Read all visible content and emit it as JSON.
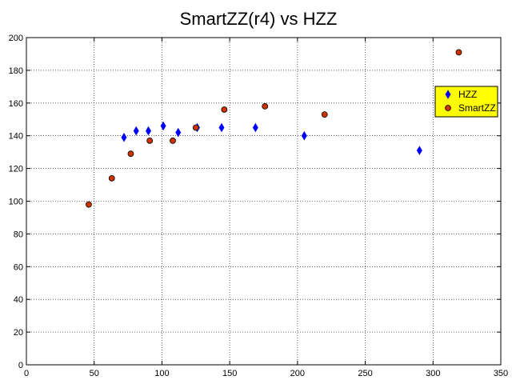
{
  "chart_data": {
    "type": "scatter",
    "title": "SmartZZ(r4) vs HZZ",
    "xlabel": "",
    "ylabel": "",
    "xlim": [
      0,
      350
    ],
    "ylim": [
      0,
      200
    ],
    "xticks": [
      "0",
      "50",
      "100",
      "150",
      "200",
      "250",
      "300",
      "350"
    ],
    "yticks": [
      "0",
      "20",
      "40",
      "60",
      "80",
      "100",
      "120",
      "140",
      "160",
      "180",
      "200"
    ],
    "grid": true,
    "legend_position": "top-right",
    "series": [
      {
        "name": "HZZ",
        "marker": "diamond",
        "color": "#0000ff",
        "points": [
          {
            "x": 72,
            "y": 139
          },
          {
            "x": 81,
            "y": 143
          },
          {
            "x": 90,
            "y": 143
          },
          {
            "x": 101,
            "y": 146
          },
          {
            "x": 112,
            "y": 142
          },
          {
            "x": 126,
            "y": 145
          },
          {
            "x": 144,
            "y": 145
          },
          {
            "x": 169,
            "y": 145
          },
          {
            "x": 205,
            "y": 140
          },
          {
            "x": 290,
            "y": 131
          }
        ]
      },
      {
        "name": "SmartZZ",
        "marker": "circle",
        "color": "#cc3300",
        "points": [
          {
            "x": 46,
            "y": 98
          },
          {
            "x": 63,
            "y": 114
          },
          {
            "x": 77,
            "y": 129
          },
          {
            "x": 91,
            "y": 137
          },
          {
            "x": 108,
            "y": 137
          },
          {
            "x": 125,
            "y": 145
          },
          {
            "x": 146,
            "y": 156
          },
          {
            "x": 176,
            "y": 158
          },
          {
            "x": 220,
            "y": 153
          },
          {
            "x": 319,
            "y": 191
          }
        ]
      }
    ]
  }
}
